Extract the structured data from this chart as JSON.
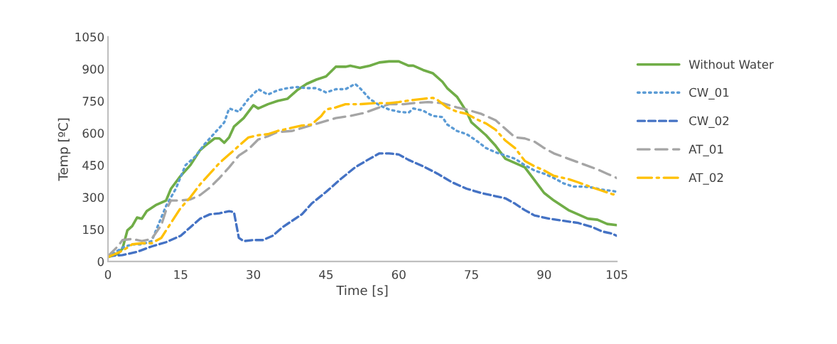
{
  "chart_data": {
    "type": "line",
    "xlabel": "Time [s]",
    "ylabel": "Temp [ºC]",
    "xlim": [
      0,
      105
    ],
    "xticks": [
      0,
      15,
      30,
      45,
      60,
      75,
      90,
      105
    ],
    "ylim": [
      0,
      1050
    ],
    "yticks": [
      0,
      150,
      300,
      450,
      600,
      750,
      900,
      1050
    ],
    "grid": false,
    "legend": "right",
    "series": [
      {
        "name": "Without Water",
        "color": "#70ad47",
        "line_style": "solid",
        "x": [
          0,
          2,
          3,
          4,
          5,
          6,
          7,
          8,
          10,
          12,
          13,
          15,
          17,
          19,
          20,
          22,
          23,
          24,
          25,
          26,
          28,
          30,
          31,
          33,
          35,
          37,
          39,
          41,
          43,
          45,
          47,
          49,
          50,
          52,
          54,
          56,
          58,
          60,
          62,
          63,
          65,
          67,
          69,
          70,
          72,
          74,
          75,
          78,
          80,
          82,
          84,
          86,
          88,
          90,
          92,
          95,
          97,
          99,
          101,
          103,
          105
        ],
        "values": [
          20,
          35,
          60,
          145,
          165,
          205,
          200,
          235,
          265,
          285,
          340,
          400,
          450,
          520,
          540,
          575,
          575,
          555,
          580,
          630,
          670,
          730,
          715,
          735,
          750,
          760,
          800,
          830,
          850,
          865,
          910,
          910,
          915,
          905,
          915,
          930,
          935,
          935,
          915,
          915,
          895,
          880,
          840,
          810,
          770,
          700,
          650,
          590,
          540,
          480,
          460,
          440,
          380,
          320,
          285,
          240,
          220,
          200,
          195,
          175,
          170
        ]
      },
      {
        "name": "CW_01",
        "color": "#5b9bd5",
        "line_style": "dotted",
        "x": [
          0,
          3,
          5,
          7,
          9,
          10,
          12,
          14,
          16,
          18,
          20,
          22,
          24,
          25,
          27,
          29,
          31,
          33,
          35,
          37,
          39,
          41,
          43,
          45,
          47,
          49,
          51,
          52,
          54,
          56,
          58,
          60,
          62,
          63,
          65,
          67,
          69,
          70,
          72,
          74,
          76,
          78,
          80,
          82,
          84,
          86,
          88,
          90,
          92,
          94,
          96,
          98,
          100,
          102,
          104,
          105
        ],
        "values": [
          20,
          65,
          80,
          80,
          95,
          150,
          260,
          340,
          450,
          490,
          550,
          600,
          650,
          715,
          700,
          760,
          805,
          780,
          800,
          810,
          815,
          810,
          810,
          790,
          805,
          805,
          830,
          810,
          760,
          730,
          710,
          700,
          695,
          715,
          705,
          680,
          675,
          640,
          610,
          595,
          565,
          530,
          510,
          495,
          480,
          450,
          425,
          410,
          390,
          365,
          350,
          350,
          345,
          335,
          330,
          325
        ]
      },
      {
        "name": "CW_02",
        "color": "#4472c4",
        "line_style": "dashed",
        "x": [
          0,
          3,
          6,
          9,
          12,
          15,
          17,
          19,
          21,
          23,
          25,
          26,
          27,
          28,
          30,
          32,
          34,
          36,
          38,
          40,
          42,
          45,
          48,
          51,
          54,
          56,
          58,
          60,
          62,
          65,
          68,
          71,
          74,
          77,
          80,
          82,
          84,
          86,
          88,
          91,
          94,
          97,
          100,
          102,
          104,
          105
        ],
        "values": [
          25,
          30,
          45,
          70,
          90,
          120,
          160,
          200,
          220,
          225,
          235,
          230,
          110,
          95,
          100,
          100,
          120,
          160,
          190,
          220,
          270,
          325,
          385,
          440,
          480,
          505,
          505,
          500,
          475,
          445,
          410,
          370,
          340,
          320,
          305,
          295,
          270,
          240,
          215,
          200,
          190,
          180,
          160,
          140,
          130,
          120
        ]
      },
      {
        "name": "AT_01",
        "color": "#a5a5a5",
        "line_style": "longdash",
        "x": [
          0,
          2,
          3,
          5,
          7,
          9,
          11,
          12,
          13,
          15,
          17,
          19,
          21,
          23,
          25,
          27,
          29,
          31,
          33,
          35,
          38,
          41,
          44,
          47,
          50,
          53,
          56,
          58,
          61,
          63,
          66,
          69,
          72,
          74,
          77,
          80,
          82,
          84,
          86,
          88,
          90,
          92,
          95,
          98,
          101,
          103,
          105
        ],
        "values": [
          25,
          70,
          100,
          105,
          95,
          105,
          170,
          240,
          285,
          285,
          290,
          310,
          345,
          390,
          440,
          495,
          525,
          570,
          585,
          605,
          610,
          630,
          650,
          670,
          680,
          695,
          720,
          735,
          735,
          740,
          745,
          740,
          720,
          710,
          690,
          660,
          620,
          580,
          575,
          560,
          530,
          505,
          480,
          455,
          430,
          410,
          390
        ]
      },
      {
        "name": "AT_02",
        "color": "#ffc000",
        "line_style": "dashdot",
        "x": [
          0,
          3,
          5,
          7,
          9,
          11,
          13,
          15,
          17,
          19,
          21,
          23,
          25,
          27,
          29,
          31,
          33,
          35,
          38,
          40,
          42,
          44,
          45,
          47,
          49,
          52,
          55,
          58,
          60,
          63,
          65,
          67,
          68,
          70,
          72,
          74,
          76,
          78,
          80,
          82,
          84,
          86,
          88,
          90,
          92,
          95,
          97,
          100,
          102,
          104,
          105
        ],
        "values": [
          20,
          50,
          80,
          85,
          85,
          110,
          180,
          250,
          300,
          360,
          410,
          460,
          500,
          540,
          580,
          590,
          595,
          610,
          625,
          635,
          640,
          680,
          710,
          720,
          735,
          735,
          740,
          740,
          745,
          755,
          760,
          765,
          755,
          720,
          700,
          690,
          665,
          645,
          615,
          565,
          530,
          470,
          445,
          425,
          400,
          385,
          370,
          345,
          330,
          315,
          310
        ]
      }
    ]
  }
}
